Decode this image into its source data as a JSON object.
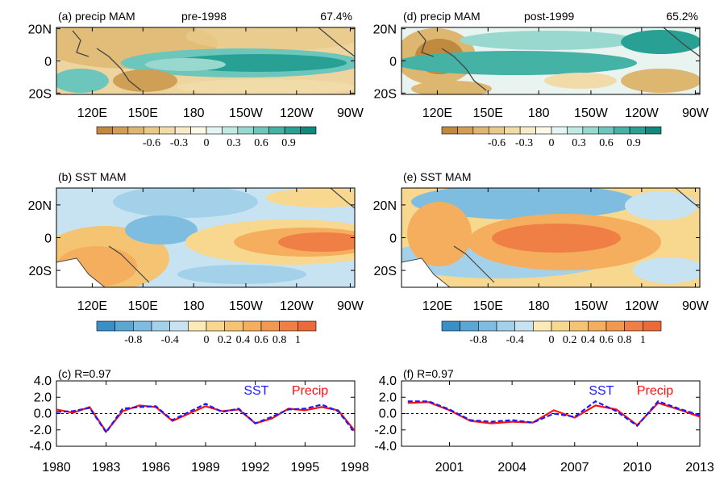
{
  "colors": {
    "precip_palette": [
      "#c08a3e",
      "#cf9f55",
      "#ddb66f",
      "#e8c98a",
      "#f1dba8",
      "#f7ebcc",
      "#fdf8e8",
      "#e6f4f2",
      "#c3e9e3",
      "#99d8cf",
      "#6cc6bb",
      "#45b2a6",
      "#28a194",
      "#108a7d"
    ],
    "sst_palette": [
      "#3a8fc7",
      "#5aa7d4",
      "#7fbde0",
      "#a4d1ea",
      "#c7e3f1",
      "#fbe9b6",
      "#f8d88f",
      "#f5c472",
      "#f4ae5d",
      "#f2984f",
      "#ef7f44",
      "#ea6a3a"
    ],
    "sst_line": "#1a1aff",
    "precip_line": "#ff1010"
  },
  "maps": {
    "longitude_labels": [
      "120E",
      "150E",
      "180",
      "150W",
      "120W",
      "90W"
    ],
    "latitude_labels": [
      "20N",
      "0",
      "20S"
    ],
    "panels": [
      {
        "id": "a",
        "label": "(a) precip MAM",
        "period": "pre-1998",
        "variance": "67.4%",
        "field": "precip",
        "pattern": "pre"
      },
      {
        "id": "d",
        "label": "(d) precip MAM",
        "period": "post-1999",
        "variance": "65.2%",
        "field": "precip",
        "pattern": "post"
      },
      {
        "id": "b",
        "label": "(b) SST MAM",
        "period": "",
        "variance": "",
        "field": "sst",
        "pattern": "pre"
      },
      {
        "id": "e",
        "label": "(e) SST MAM",
        "period": "",
        "variance": "",
        "field": "sst",
        "pattern": "post"
      }
    ]
  },
  "colorbars": {
    "precip": {
      "levels": [
        -1.2,
        -1.05,
        -0.9,
        -0.75,
        -0.6,
        -0.45,
        -0.3,
        -0.15,
        0,
        0.15,
        0.3,
        0.45,
        0.6,
        0.75,
        0.9,
        1.05,
        1.2
      ],
      "labels": [
        "-0.6",
        "-0.3",
        "0",
        "0.3",
        "0.6",
        "0.9"
      ]
    },
    "sst": {
      "levels": [
        -1.2,
        -1.0,
        -0.8,
        -0.6,
        -0.4,
        -0.2,
        0,
        0.2,
        0.4,
        0.6,
        0.8,
        1.0,
        1.2
      ],
      "labels": [
        "-0.8",
        "-0.4",
        "0",
        "0.2",
        "0.4",
        "0.6",
        "0.8",
        "1"
      ]
    }
  },
  "chart_data": [
    {
      "type": "line",
      "title": "(c) R=0.97",
      "xlabel": "",
      "ylabel": "",
      "xlim": [
        1980,
        1998
      ],
      "ylim": [
        -4.0,
        4.0
      ],
      "xticks": [
        "1980",
        "1983",
        "1986",
        "1989",
        "1992",
        "1995",
        "1998"
      ],
      "yticks": [
        "4.0",
        "2.0",
        "0.0",
        "-2.0",
        "-4.0"
      ],
      "x": [
        1980,
        1981,
        1982,
        1983,
        1984,
        1985,
        1986,
        1987,
        1988,
        1989,
        1990,
        1991,
        1992,
        1993,
        1994,
        1995,
        1996,
        1997,
        1998
      ],
      "series": [
        {
          "name": "SST",
          "style": "dashed",
          "values": [
            0.2,
            0.3,
            0.7,
            -2.3,
            0.6,
            0.8,
            0.9,
            -0.8,
            0.2,
            1.2,
            0.2,
            0.6,
            -1.2,
            -0.4,
            0.5,
            0.6,
            1.1,
            0.3,
            -2.3
          ]
        },
        {
          "name": "Precip",
          "style": "solid",
          "values": [
            0.5,
            0.1,
            0.8,
            -2.2,
            0.3,
            1.0,
            0.8,
            -0.9,
            0.0,
            0.9,
            0.3,
            0.5,
            -1.2,
            -0.6,
            0.6,
            0.4,
            0.8,
            0.4,
            -2.1
          ]
        }
      ],
      "legend_placement": "top-right"
    },
    {
      "type": "line",
      "title": "(f) R=0.97",
      "xlabel": "",
      "ylabel": "",
      "xlim": [
        1998.7,
        2013
      ],
      "ylim": [
        -4.0,
        4.0
      ],
      "xticks": [
        "2001",
        "2004",
        "2007",
        "2010",
        "2013"
      ],
      "yticks": [
        "4.0",
        "2.0",
        "0.0",
        "-2.0",
        "-4.0"
      ],
      "x": [
        1999,
        2000,
        2001,
        2002,
        2003,
        2004,
        2005,
        2006,
        2007,
        2008,
        2009,
        2010,
        2011,
        2012,
        2013
      ],
      "series": [
        {
          "name": "SST",
          "style": "dashed",
          "values": [
            1.5,
            1.5,
            0.5,
            -0.8,
            -1.0,
            -0.8,
            -1.1,
            0.0,
            -0.4,
            1.5,
            0.3,
            -1.5,
            1.5,
            0.6,
            -0.2
          ]
        },
        {
          "name": "Precip",
          "style": "solid",
          "values": [
            1.3,
            1.4,
            0.4,
            -0.9,
            -1.2,
            -1.0,
            -1.1,
            0.4,
            -0.5,
            1.0,
            0.5,
            -1.4,
            1.3,
            0.5,
            -0.4
          ]
        }
      ],
      "legend_placement": "top-right"
    }
  ]
}
